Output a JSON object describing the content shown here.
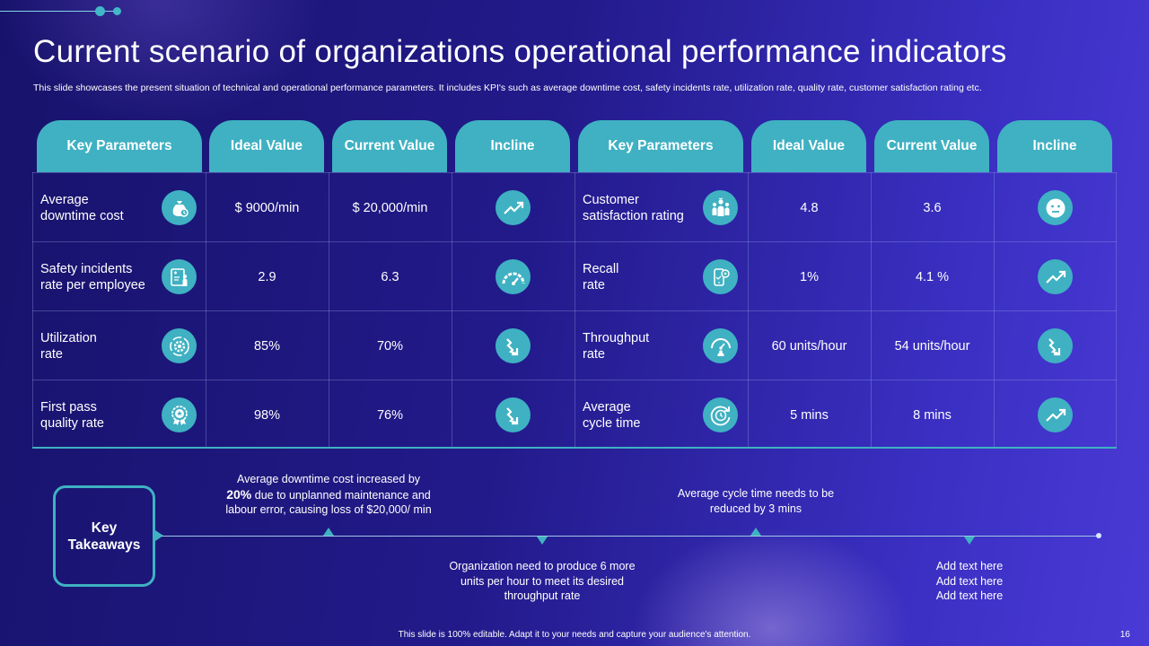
{
  "title": "Current scenario of organizations operational performance indicators",
  "subtitle": "This slide showcases the present situation of technical and operational performance parameters. It includes KPI's such as average downtime cost, safety incidents rate, utilization rate, quality rate, customer satisfaction rating etc.",
  "table": {
    "headers": [
      "Key Parameters",
      "Ideal Value",
      "Current Value",
      "Incline",
      "Key Parameters",
      "Ideal Value",
      "Current Value",
      "Incline"
    ],
    "rows": [
      {
        "left": {
          "param_line1": "Average",
          "param_line2": "downtime cost",
          "icon": "money-bag-icon",
          "ideal": "$ 9000/min",
          "current": "$ 20,000/min",
          "incline_icon": "trend-up-icon"
        },
        "right": {
          "param_line1": "Customer",
          "param_line2": "satisfaction rating",
          "icon": "team-icon",
          "ideal": "4.8",
          "current": "3.6",
          "incline_icon": "neutral-face-icon"
        }
      },
      {
        "left": {
          "param_line1": "Safety incidents",
          "param_line2": "rate per employee",
          "icon": "safety-board-icon",
          "ideal": "2.9",
          "current": "6.3",
          "incline_icon": "gauge-icon"
        },
        "right": {
          "param_line1": "Recall",
          "param_line2": "rate",
          "icon": "phone-recall-icon",
          "ideal": "1%",
          "current": "4.1 %",
          "incline_icon": "trend-up-icon"
        }
      },
      {
        "left": {
          "param_line1": "Utilization",
          "param_line2": "rate",
          "icon": "gear-cycle-icon",
          "ideal": "85%",
          "current": "70%",
          "incline_icon": "trend-down-icon"
        },
        "right": {
          "param_line1": "Throughput",
          "param_line2": "rate",
          "icon": "speedometer-icon",
          "ideal": "60 units/hour",
          "current": "54 units/hour",
          "incline_icon": "trend-down-icon"
        }
      },
      {
        "left": {
          "param_line1": "First pass",
          "param_line2": "quality rate",
          "icon": "award-badge-icon",
          "ideal": "98%",
          "current": "76%",
          "incline_icon": "trend-down-icon"
        },
        "right": {
          "param_line1": "Average",
          "param_line2": "cycle time",
          "icon": "clock-cycle-icon",
          "ideal": "5 mins",
          "current": "8 mins",
          "incline_icon": "trend-up-icon"
        }
      }
    ]
  },
  "takeaways": {
    "label_line1": "Key",
    "label_line2": "Takeaways",
    "notes": [
      {
        "pre": "Average downtime cost increased by",
        "bold": "20%",
        "post": " due to unplanned maintenance and labour error, causing loss of $20,000/ min"
      },
      {
        "text": "Organization need to produce 6 more units per hour to meet its desired throughput rate"
      },
      {
        "text": "Average cycle time needs to be reduced by 3 mins"
      },
      {
        "line1": "Add text here",
        "line2": "Add text here",
        "line3": "Add text here"
      }
    ]
  },
  "footer": "This slide is 100% editable. Adapt it to your needs and capture your audience's attention.",
  "page_number": "16",
  "colors": {
    "accent": "#3fb1c2",
    "background_start": "#17136b",
    "background_end": "#4a3ad6"
  }
}
